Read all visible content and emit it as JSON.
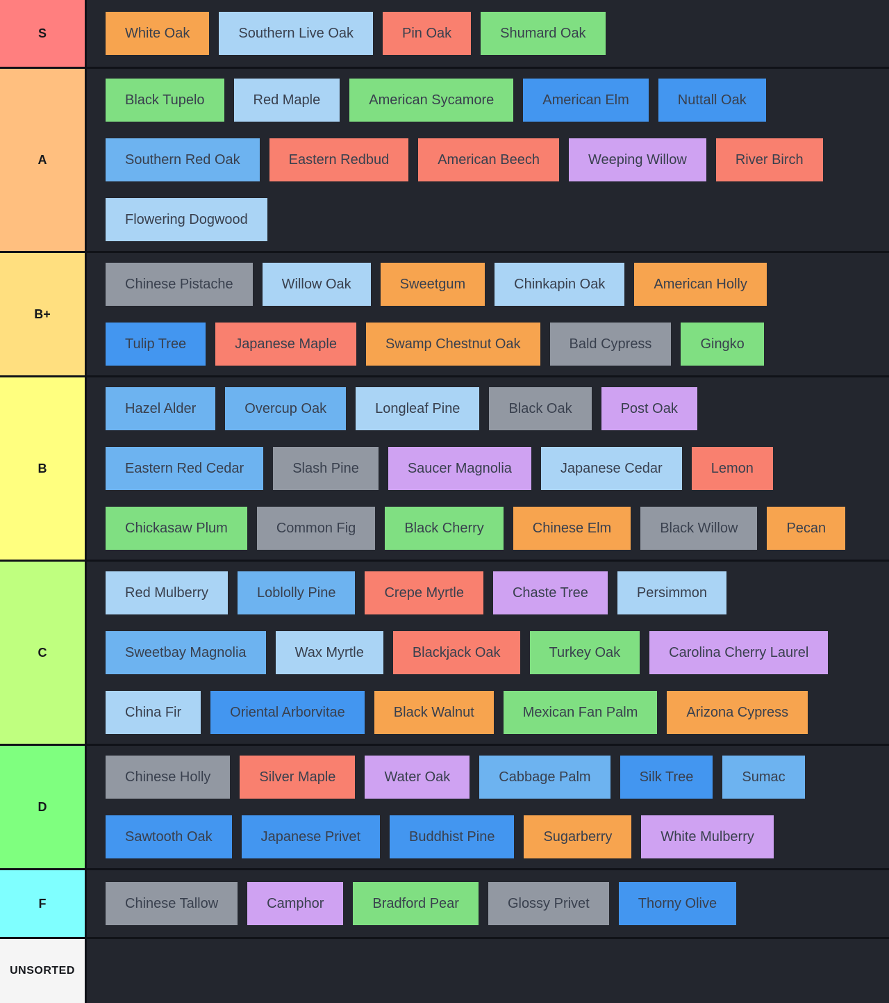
{
  "palette": {
    "background": "#23262e",
    "separator": "#101218",
    "item_text": "#39404e",
    "item_colors": {
      "orange": "#f7a44f",
      "lightblue": "#aad4f5",
      "salmon": "#f9806f",
      "green": "#80df82",
      "blue": "#4396f0",
      "skyblue": "#6db3f0",
      "purple": "#cfa2f2",
      "gray": "#9298a2"
    }
  },
  "tiers": [
    {
      "id": "s",
      "label": "S",
      "label_color": "#ff7f7f",
      "lines": [
        [
          {
            "label": "White Oak",
            "color": "orange"
          },
          {
            "label": "Southern Live Oak",
            "color": "lightblue"
          },
          {
            "label": "Pin Oak",
            "color": "salmon"
          },
          {
            "label": "Shumard Oak",
            "color": "green"
          }
        ]
      ]
    },
    {
      "id": "a",
      "label": "A",
      "label_color": "#ffbf7f",
      "lines": [
        [
          {
            "label": "Black Tupelo",
            "color": "green"
          },
          {
            "label": "Red Maple",
            "color": "lightblue"
          },
          {
            "label": "American Sycamore",
            "color": "green"
          },
          {
            "label": "American Elm",
            "color": "blue"
          },
          {
            "label": "Nuttall Oak",
            "color": "blue"
          }
        ],
        [
          {
            "label": "Southern Red Oak",
            "color": "skyblue"
          },
          {
            "label": "Eastern Redbud",
            "color": "salmon"
          },
          {
            "label": "American Beech",
            "color": "salmon"
          },
          {
            "label": "Weeping Willow",
            "color": "purple"
          },
          {
            "label": "River Birch",
            "color": "salmon"
          }
        ],
        [
          {
            "label": "Flowering Dogwood",
            "color": "lightblue"
          }
        ]
      ]
    },
    {
      "id": "b-plus",
      "label": "B+",
      "label_color": "#ffdf7f",
      "lines": [
        [
          {
            "label": "Chinese Pistache",
            "color": "gray"
          },
          {
            "label": "Willow Oak",
            "color": "lightblue"
          },
          {
            "label": "Sweetgum",
            "color": "orange"
          },
          {
            "label": "Chinkapin Oak",
            "color": "lightblue"
          },
          {
            "label": "American Holly",
            "color": "orange"
          }
        ],
        [
          {
            "label": "Tulip Tree",
            "color": "blue"
          },
          {
            "label": "Japanese Maple",
            "color": "salmon"
          },
          {
            "label": "Swamp Chestnut Oak",
            "color": "orange"
          },
          {
            "label": "Bald Cypress",
            "color": "gray"
          },
          {
            "label": "Gingko",
            "color": "green"
          }
        ]
      ]
    },
    {
      "id": "b",
      "label": "B",
      "label_color": "#ffff7f",
      "lines": [
        [
          {
            "label": "Hazel Alder",
            "color": "skyblue"
          },
          {
            "label": "Overcup Oak",
            "color": "skyblue"
          },
          {
            "label": "Longleaf Pine",
            "color": "lightblue"
          },
          {
            "label": "Black Oak",
            "color": "gray"
          },
          {
            "label": "Post Oak",
            "color": "purple"
          }
        ],
        [
          {
            "label": "Eastern Red Cedar",
            "color": "skyblue"
          },
          {
            "label": "Slash Pine",
            "color": "gray"
          },
          {
            "label": "Saucer Magnolia",
            "color": "purple"
          },
          {
            "label": "Japanese Cedar",
            "color": "lightblue"
          },
          {
            "label": "Lemon",
            "color": "salmon"
          }
        ],
        [
          {
            "label": "Chickasaw Plum",
            "color": "green"
          },
          {
            "label": "Common Fig",
            "color": "gray"
          },
          {
            "label": "Black Cherry",
            "color": "green"
          },
          {
            "label": "Chinese Elm",
            "color": "orange"
          },
          {
            "label": "Black Willow",
            "color": "gray"
          },
          {
            "label": "Pecan",
            "color": "orange"
          }
        ]
      ]
    },
    {
      "id": "c",
      "label": "C",
      "label_color": "#bfff7f",
      "lines": [
        [
          {
            "label": "Red Mulberry",
            "color": "lightblue"
          },
          {
            "label": "Loblolly Pine",
            "color": "skyblue"
          },
          {
            "label": "Crepe Myrtle",
            "color": "salmon"
          },
          {
            "label": "Chaste Tree",
            "color": "purple"
          },
          {
            "label": "Persimmon",
            "color": "lightblue"
          }
        ],
        [
          {
            "label": "Sweetbay Magnolia",
            "color": "skyblue"
          },
          {
            "label": "Wax Myrtle",
            "color": "lightblue"
          },
          {
            "label": "Blackjack Oak",
            "color": "salmon"
          },
          {
            "label": "Turkey Oak",
            "color": "green"
          },
          {
            "label": "Carolina Cherry Laurel",
            "color": "purple"
          }
        ],
        [
          {
            "label": "China Fir",
            "color": "lightblue"
          },
          {
            "label": "Oriental Arborvitae",
            "color": "blue"
          },
          {
            "label": "Black Walnut",
            "color": "orange"
          },
          {
            "label": "Mexican Fan Palm",
            "color": "green"
          },
          {
            "label": "Arizona Cypress",
            "color": "orange"
          }
        ]
      ]
    },
    {
      "id": "d",
      "label": "D",
      "label_color": "#7fff7f",
      "lines": [
        [
          {
            "label": "Chinese Holly",
            "color": "gray"
          },
          {
            "label": "Silver Maple",
            "color": "salmon"
          },
          {
            "label": "Water Oak",
            "color": "purple"
          },
          {
            "label": "Cabbage Palm",
            "color": "skyblue"
          },
          {
            "label": "Silk Tree",
            "color": "blue"
          },
          {
            "label": "Sumac",
            "color": "skyblue"
          }
        ],
        [
          {
            "label": "Sawtooth Oak",
            "color": "blue"
          },
          {
            "label": "Japanese Privet",
            "color": "blue"
          },
          {
            "label": "Buddhist Pine",
            "color": "blue"
          },
          {
            "label": "Sugarberry",
            "color": "orange"
          },
          {
            "label": "White Mulberry",
            "color": "purple"
          }
        ]
      ]
    },
    {
      "id": "f",
      "label": "F",
      "label_color": "#7fffff",
      "lines": [
        [
          {
            "label": "Chinese Tallow",
            "color": "gray"
          },
          {
            "label": "Camphor",
            "color": "purple"
          },
          {
            "label": "Bradford Pear",
            "color": "green"
          },
          {
            "label": "Glossy Privet",
            "color": "gray"
          },
          {
            "label": "Thorny Olive",
            "color": "blue"
          }
        ]
      ]
    },
    {
      "id": "unsorted",
      "label": "UNSORTED",
      "label_color": "#f5f5f5",
      "lines": []
    }
  ]
}
